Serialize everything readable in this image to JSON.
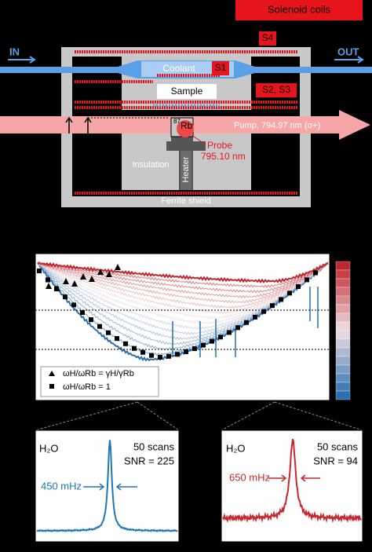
{
  "diagram": {
    "legend_label": "Solenoid coils",
    "inlet": "IN",
    "outlet": "OUT",
    "coils": [
      "S4",
      "S1",
      "S2, S3"
    ],
    "coolant": "Coolant",
    "sample": "Sample",
    "isotope_mass": "87",
    "isotope": "Rb",
    "pump": "Pump, 794.97 nm (σ+)",
    "probe": "Probe",
    "probe_wavelength": "795.10 nm",
    "insulation": "Insulation",
    "heater": "Heater",
    "shield": "Ferrite shield"
  },
  "plot": {
    "legend": [
      "ωH/ωRb = γH/γRb",
      "ωH/ωRb = 1"
    ]
  },
  "spectra": [
    {
      "molecule": "H₂O",
      "scans": "50 scans",
      "snr": "SNR = 225",
      "linewidth": "450 mHz"
    },
    {
      "molecule": "H₂O",
      "scans": "50 scans",
      "snr": "SNR = 94",
      "linewidth": "650 mHz"
    }
  ]
}
